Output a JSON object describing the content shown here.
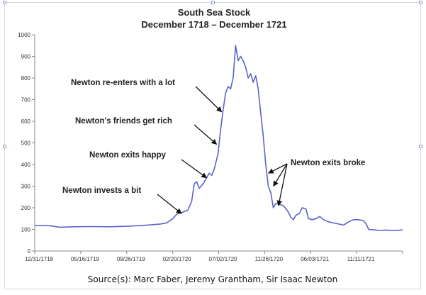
{
  "chart_data": {
    "type": "line",
    "title": "South Sea Stock",
    "subtitle": "December 1718 – December 1721",
    "xlabel": "",
    "ylabel": "",
    "ylim": [
      0,
      1000
    ],
    "yticks": [
      0,
      100,
      200,
      300,
      400,
      500,
      600,
      700,
      800,
      900,
      1000
    ],
    "xtick_labels": [
      "12/31/1718",
      "05/16/1719",
      "09/26/1719",
      "02/20/1720",
      "07/02/1720",
      "11/26/1720",
      "06/03/1721",
      "11/11/1721"
    ],
    "grid": false,
    "legend": "none",
    "line_color": "#5b63c9",
    "series": [
      {
        "values": [
          [
            0,
            118
          ],
          [
            12,
            117
          ],
          [
            20,
            110
          ],
          [
            30,
            112
          ],
          [
            45,
            113
          ],
          [
            60,
            112
          ],
          [
            75,
            115
          ],
          [
            90,
            120
          ],
          [
            100,
            125
          ],
          [
            105,
            130
          ],
          [
            110,
            150
          ],
          [
            113,
            170
          ],
          [
            118,
            180
          ],
          [
            122,
            190
          ],
          [
            125,
            230
          ],
          [
            127,
            310
          ],
          [
            129,
            320
          ],
          [
            131,
            290
          ],
          [
            134,
            310
          ],
          [
            137,
            340
          ],
          [
            139,
            360
          ],
          [
            141,
            350
          ],
          [
            143,
            380
          ],
          [
            146,
            450
          ],
          [
            148,
            560
          ],
          [
            150,
            650
          ],
          [
            152,
            730
          ],
          [
            154,
            760
          ],
          [
            156,
            750
          ],
          [
            158,
            800
          ],
          [
            160,
            950
          ],
          [
            162,
            880
          ],
          [
            164,
            900
          ],
          [
            166,
            880
          ],
          [
            168,
            850
          ],
          [
            170,
            800
          ],
          [
            172,
            820
          ],
          [
            174,
            780
          ],
          [
            176,
            810
          ],
          [
            178,
            750
          ],
          [
            180,
            640
          ],
          [
            182,
            530
          ],
          [
            184,
            400
          ],
          [
            186,
            300
          ],
          [
            188,
            270
          ],
          [
            190,
            200
          ],
          [
            192,
            220
          ],
          [
            195,
            215
          ],
          [
            198,
            210
          ],
          [
            200,
            195
          ],
          [
            202,
            180
          ],
          [
            204,
            155
          ],
          [
            206,
            145
          ],
          [
            208,
            165
          ],
          [
            211,
            175
          ],
          [
            213,
            200
          ],
          [
            216,
            195
          ],
          [
            218,
            150
          ],
          [
            221,
            145
          ],
          [
            224,
            150
          ],
          [
            227,
            160
          ],
          [
            230,
            145
          ],
          [
            234,
            135
          ],
          [
            238,
            130
          ],
          [
            242,
            125
          ],
          [
            246,
            120
          ],
          [
            250,
            135
          ],
          [
            254,
            145
          ],
          [
            258,
            145
          ],
          [
            262,
            140
          ],
          [
            264,
            125
          ],
          [
            266,
            100
          ],
          [
            270,
            98
          ],
          [
            275,
            95
          ],
          [
            280,
            97
          ],
          [
            285,
            95
          ],
          [
            290,
            96
          ],
          [
            293,
            98
          ]
        ]
      }
    ],
    "annotations": [
      {
        "text": "Newton re-enters with a lot",
        "target": [
          150,
          650
        ]
      },
      {
        "text": "Newton's friends get rich",
        "target": [
          146,
          500
        ]
      },
      {
        "text": "Newton exits happy",
        "target": [
          138,
          345
        ]
      },
      {
        "text": "Newton invests a bit",
        "target": [
          118,
          180
        ]
      },
      {
        "text": "Newton exits broke",
        "targets": [
          [
            185,
            360
          ],
          [
            189,
            300
          ],
          [
            193,
            210
          ]
        ]
      }
    ]
  },
  "source_text": "Source(s): Marc Faber, Jeremy Grantham, Sir Isaac Newton"
}
